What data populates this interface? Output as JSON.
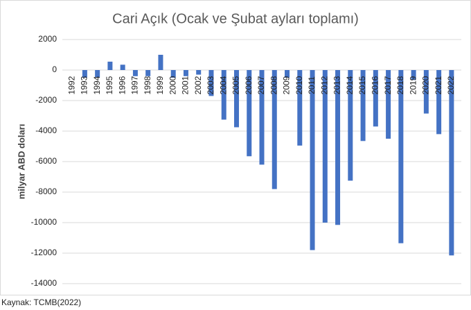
{
  "chart_data": {
    "type": "bar",
    "title": "Cari Açık (Ocak ve Şubat ayları toplamı)",
    "y_label": "milyar ABD doları",
    "source": "Kaynak: TCMB(2022)",
    "categories": [
      "1992",
      "1993",
      "1994",
      "1995",
      "1996",
      "1997",
      "1998",
      "1999",
      "2000",
      "2001",
      "2002",
      "2003",
      "2004",
      "2005",
      "2006",
      "2007",
      "2008",
      "2009",
      "2010",
      "2011",
      "2012",
      "2013",
      "2014",
      "2015",
      "2016",
      "2017",
      "2018",
      "2019",
      "2020",
      "2021",
      "2022"
    ],
    "values": [
      0,
      -500,
      -500,
      550,
      350,
      -400,
      -400,
      1000,
      -500,
      -400,
      -300,
      -1700,
      -3250,
      -3750,
      -5650,
      -6200,
      -7800,
      -500,
      -4950,
      -11800,
      -10000,
      -10150,
      -7250,
      -4650,
      -3700,
      -4500,
      -11350,
      -650,
      -2850,
      -4200,
      -12150
    ],
    "color": "#4472c4",
    "ylim": [
      -14000,
      2000
    ],
    "yticks": [
      -14000,
      -12000,
      -10000,
      -8000,
      -6000,
      -4000,
      -2000,
      0,
      2000
    ],
    "grid": true
  }
}
